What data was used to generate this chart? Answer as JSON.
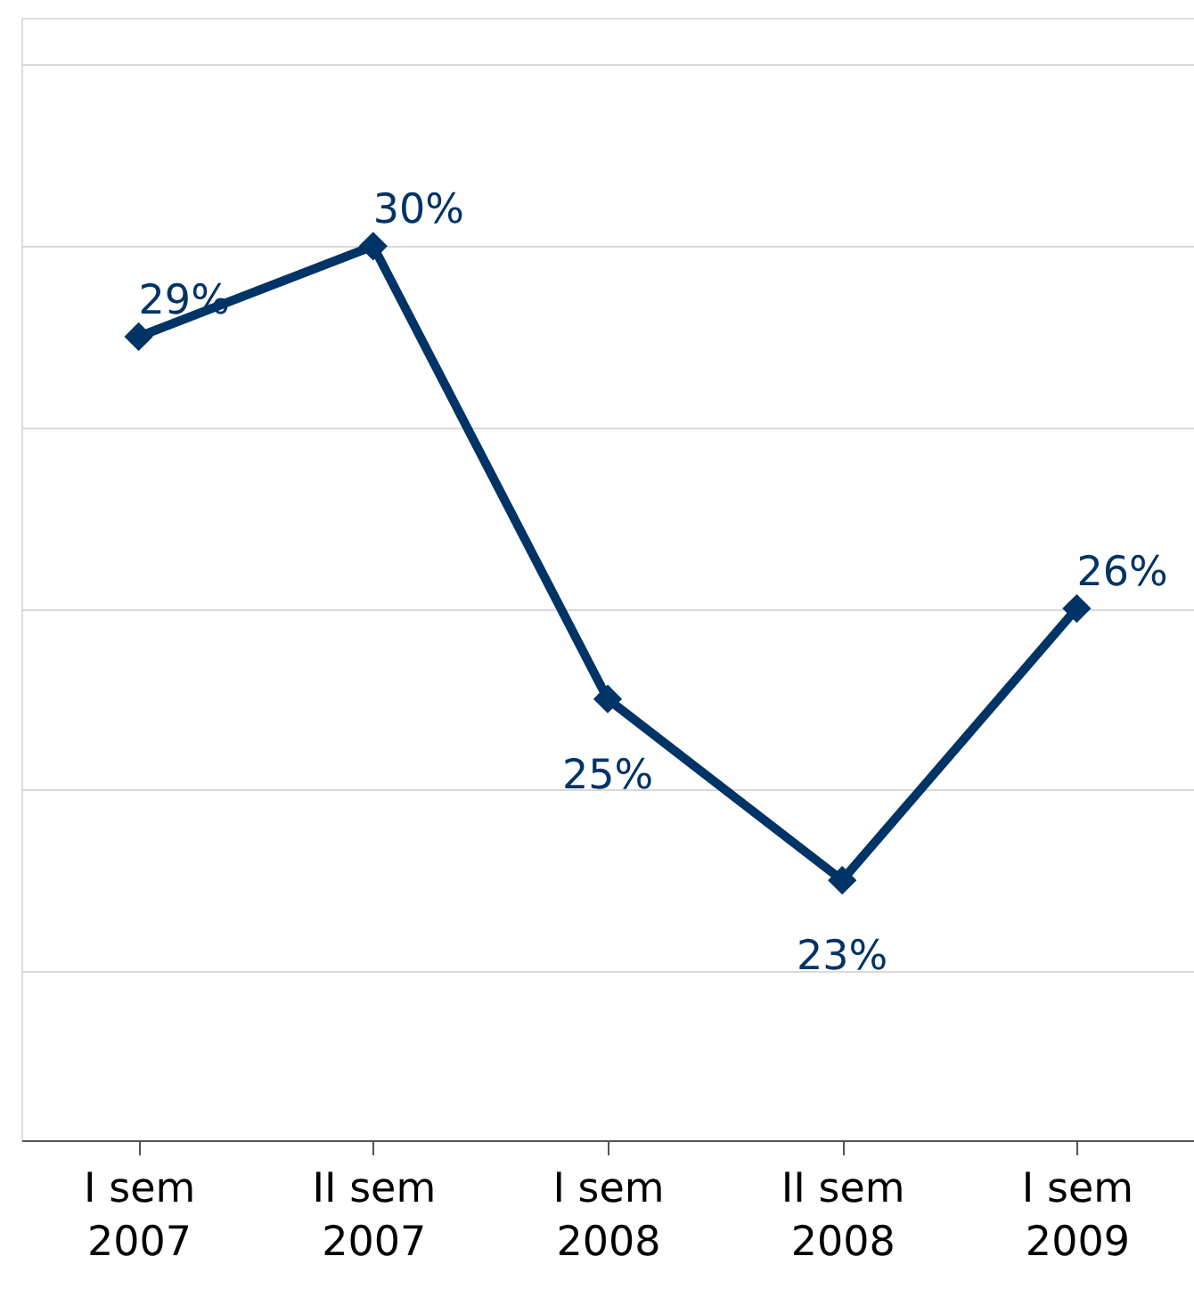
{
  "chart_data": {
    "type": "line",
    "categories": [
      "I sem 2007",
      "II sem 2007",
      "I sem 2008",
      "II sem 2008",
      "I sem 2009"
    ],
    "series": [
      {
        "color": "#003366",
        "values": [
          29,
          30,
          25,
          23,
          26
        ],
        "value_labels": [
          "29%",
          "30%",
          "25%",
          "23%",
          "26%"
        ]
      }
    ],
    "marker": "diamond",
    "line_style": "solid",
    "grid": "y",
    "tick_labels": "x"
  }
}
